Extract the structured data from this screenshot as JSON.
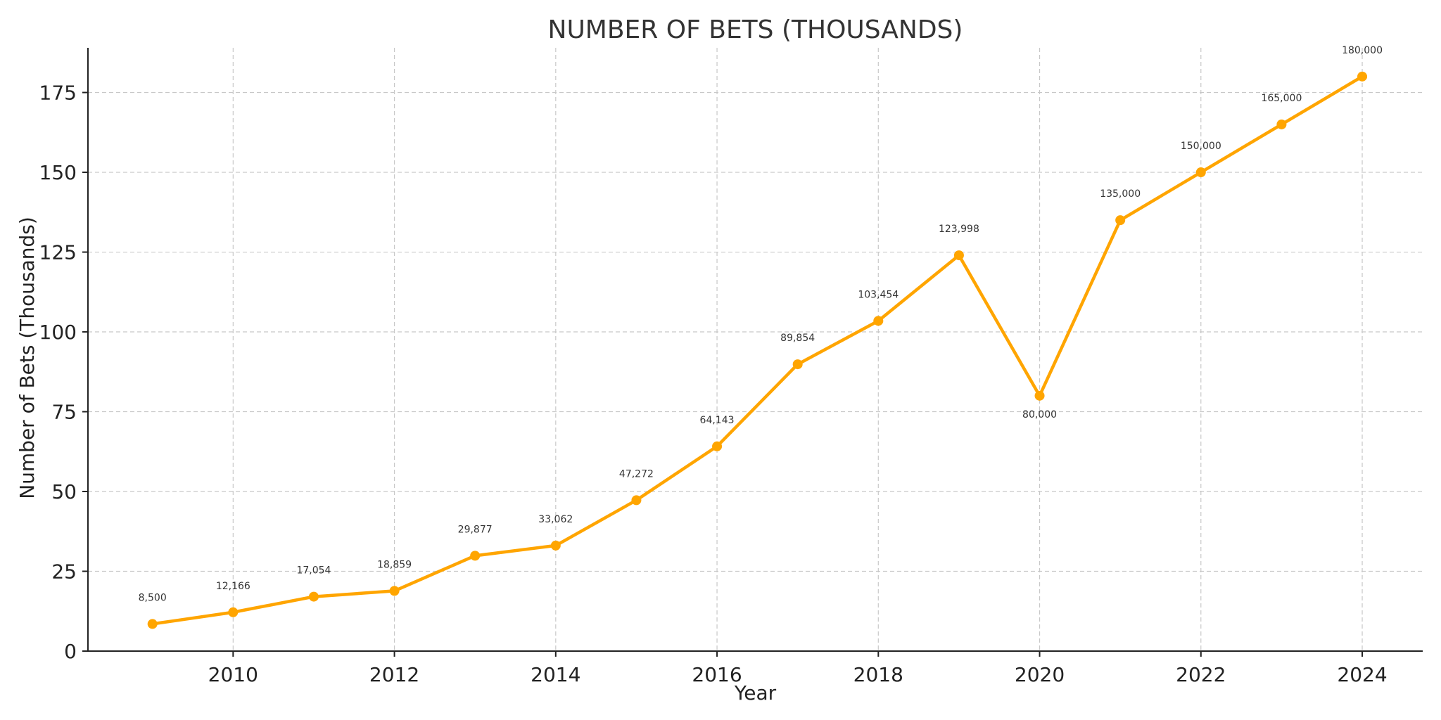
{
  "chart_data": {
    "type": "line",
    "title": "NUMBER OF BETS (THOUSANDS)",
    "xlabel": "Year",
    "ylabel": "Number of Bets (Thousands)",
    "xlim": [
      2008.2,
      2024.75
    ],
    "ylim": [
      0,
      189
    ],
    "xticks": [
      2010,
      2012,
      2014,
      2016,
      2018,
      2020,
      2022,
      2024
    ],
    "yticks": [
      0,
      25,
      50,
      75,
      100,
      125,
      150,
      175
    ],
    "grid": true,
    "color": "#FFA500",
    "series": [
      {
        "x": [
          2009,
          2010,
          2011,
          2012,
          2013,
          2014,
          2015,
          2016,
          2017,
          2018,
          2019,
          2020,
          2021,
          2022,
          2023,
          2024
        ],
        "values": [
          8.5,
          12.166,
          17.054,
          18.859,
          29.877,
          33.062,
          47.272,
          64.143,
          89.854,
          103.454,
          123.998,
          80.0,
          135.0,
          150.0,
          165.0,
          180.0
        ],
        "labels": [
          "8,500",
          "12,166",
          "17,054",
          "18,859",
          "29,877",
          "33,062",
          "47,272",
          "64,143",
          "89,854",
          "103,454",
          "123,998",
          "80,000",
          "135,000",
          "150,000",
          "165,000",
          "180,000"
        ],
        "label_below": [
          false,
          false,
          false,
          false,
          false,
          false,
          false,
          false,
          false,
          false,
          false,
          true,
          false,
          false,
          false,
          false
        ]
      }
    ]
  }
}
